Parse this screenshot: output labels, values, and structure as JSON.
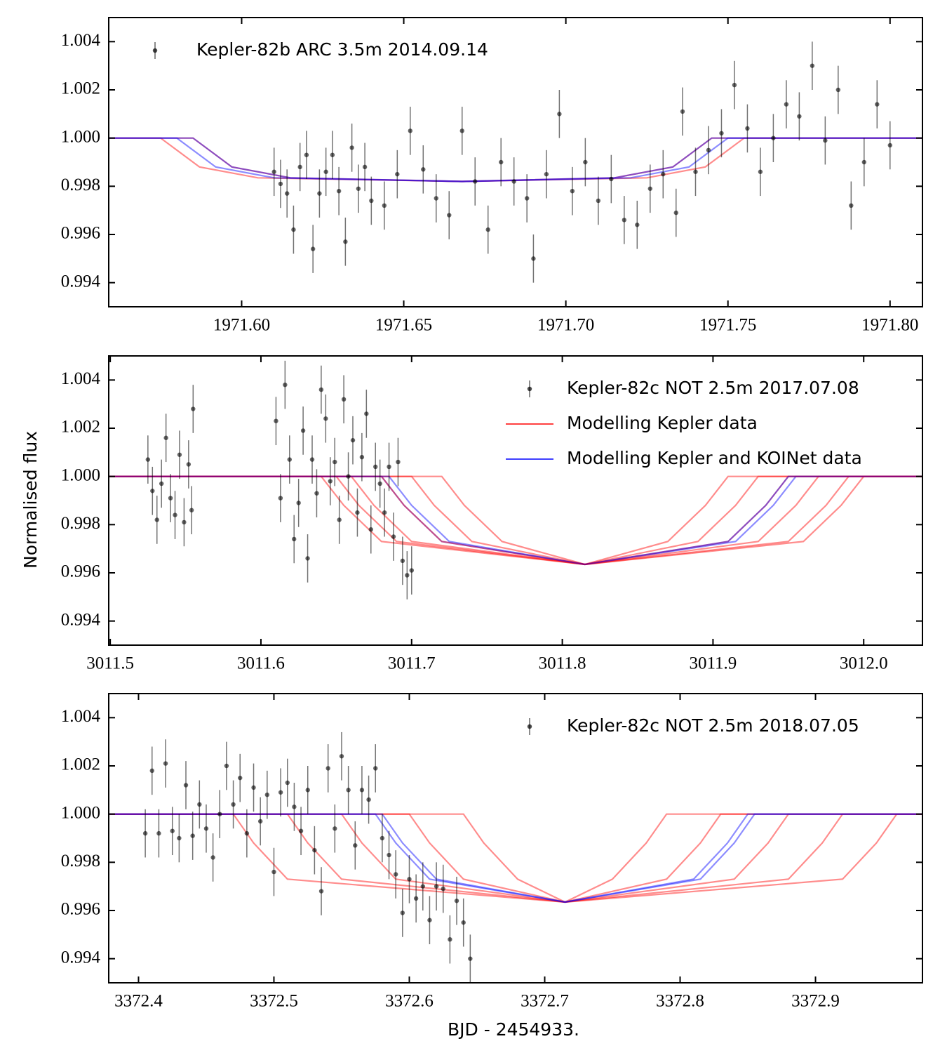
{
  "ylabel": "Normalised flux",
  "xlabel": "BJD - 2454933.",
  "chart_data": [
    {
      "type": "scatter",
      "legend": "upper left",
      "xlim": [
        1971.559,
        1971.81
      ],
      "ylim": [
        0.993,
        1.005
      ],
      "xticks": [
        {
          "value": 1971.6,
          "label": "1971.60"
        },
        1971.65,
        {
          "value": 1971.7,
          "label": "1971.70"
        },
        1971.75,
        {
          "value": 1971.8,
          "label": "1971.80"
        }
      ],
      "yticks": [
        0.994,
        0.996,
        0.998,
        {
          "value": 1,
          "label": "1.000"
        },
        1.002,
        1.004
      ],
      "series": [
        {
          "name": "Kepler-82b ARC 3.5m 2014.09.14",
          "color": "#000000",
          "yerr": 0.001,
          "x": [
            1971.61,
            1971.612,
            1971.614,
            1971.616,
            1971.618,
            1971.62,
            1971.622,
            1971.624,
            1971.626,
            1971.628,
            1971.63,
            1971.632,
            1971.634,
            1971.636,
            1971.638,
            1971.64,
            1971.644,
            1971.648,
            1971.652,
            1971.656,
            1971.66,
            1971.664,
            1971.668,
            1971.672,
            1971.676,
            1971.68,
            1971.684,
            1971.688,
            1971.69,
            1971.694,
            1971.698,
            1971.702,
            1971.706,
            1971.71,
            1971.714,
            1971.718,
            1971.722,
            1971.726,
            1971.73,
            1971.734,
            1971.736,
            1971.74,
            1971.744,
            1971.748,
            1971.752,
            1971.756,
            1971.76,
            1971.764,
            1971.768,
            1971.772,
            1971.776,
            1971.78,
            1971.784,
            1971.788,
            1971.792,
            1971.796,
            1971.8
          ],
          "values": [
            0.9986,
            0.9981,
            0.9977,
            0.9962,
            0.9988,
            0.9993,
            0.9954,
            0.9977,
            0.9986,
            0.9993,
            0.9978,
            0.9957,
            0.9996,
            0.9979,
            0.9988,
            0.9974,
            0.9972,
            0.9985,
            1.0003,
            0.9987,
            0.9975,
            0.9968,
            1.0003,
            0.9982,
            0.9962,
            0.999,
            0.9982,
            0.9975,
            0.995,
            0.9985,
            1.001,
            0.9978,
            0.999,
            0.9974,
            0.9983,
            0.9966,
            0.9964,
            0.9979,
            0.9985,
            0.9969,
            1.0011,
            0.9986,
            0.9995,
            1.0002,
            1.0022,
            1.0004,
            0.9986,
            1.0,
            1.0014,
            1.0009,
            1.003,
            0.9999,
            1.002,
            0.9972,
            0.999,
            1.0014,
            0.9997
          ]
        },
        {
          "color": "#ff0000",
          "x": [
            1971.559,
            1971.575,
            1971.587,
            1971.605,
            1971.668,
            1971.715,
            1971.733,
            1971.745,
            1971.81
          ],
          "values": [
            1,
            1,
            0.9988,
            0.99835,
            0.9982,
            0.99835,
            0.9988,
            1,
            1
          ]
        },
        {
          "color": "#ff0000",
          "x": [
            1971.559,
            1971.585,
            1971.597,
            1971.615,
            1971.668,
            1971.725,
            1971.743,
            1971.755,
            1971.81
          ],
          "values": [
            1,
            1,
            0.9988,
            0.99835,
            0.9982,
            0.99835,
            0.9988,
            1,
            1
          ]
        },
        {
          "color": "#0000ff",
          "x": [
            1971.559,
            1971.58,
            1971.592,
            1971.61,
            1971.668,
            1971.72,
            1971.738,
            1971.75,
            1971.81
          ],
          "values": [
            1,
            1,
            0.9988,
            0.99835,
            0.9982,
            0.99835,
            0.9988,
            1,
            1
          ]
        },
        {
          "color": "#0000ff",
          "x": [
            1971.559,
            1971.585,
            1971.597,
            1971.615,
            1971.668,
            1971.715,
            1971.733,
            1971.745,
            1971.81
          ],
          "values": [
            1,
            1,
            0.9988,
            0.99835,
            0.9982,
            0.99835,
            0.9988,
            1,
            1
          ]
        }
      ]
    },
    {
      "type": "scatter",
      "legend": "upper right",
      "xlim": [
        3011.499,
        3012.039
      ],
      "ylim": [
        0.993,
        1.005
      ],
      "xticks": [
        3011.5,
        3011.6,
        3011.7,
        3011.8,
        3011.9,
        {
          "value": 3012,
          "label": "3012.0"
        }
      ],
      "yticks": [
        0.994,
        0.996,
        0.998,
        {
          "value": 1,
          "label": "1.000"
        },
        1.002,
        1.004
      ],
      "series": [
        {
          "name": "Kepler-82c NOT 2.5m 2017.07.08",
          "color": "#000000",
          "yerr": 0.001,
          "x": [
            3011.525,
            3011.528,
            3011.531,
            3011.534,
            3011.537,
            3011.54,
            3011.543,
            3011.546,
            3011.549,
            3011.552,
            3011.555,
            3011.554,
            3011.61,
            3011.613,
            3011.616,
            3011.619,
            3011.622,
            3011.625,
            3011.628,
            3011.631,
            3011.634,
            3011.637,
            3011.64,
            3011.643,
            3011.646,
            3011.649,
            3011.652,
            3011.655,
            3011.658,
            3011.661,
            3011.664,
            3011.667,
            3011.67,
            3011.673,
            3011.676,
            3011.679,
            3011.682,
            3011.685,
            3011.688,
            3011.691,
            3011.694,
            3011.697,
            3011.7
          ],
          "values": [
            1.0007,
            0.9994,
            0.9982,
            0.9997,
            1.0016,
            0.9991,
            0.9984,
            1.0009,
            0.9981,
            1.0005,
            1.0028,
            0.9986,
            1.0023,
            0.9991,
            1.0038,
            1.0007,
            0.9974,
            0.9989,
            1.0019,
            0.9966,
            1.0007,
            0.9993,
            1.0036,
            1.0024,
            0.9998,
            1.0006,
            0.9982,
            1.0032,
            1.0,
            1.0015,
            0.9985,
            1.0008,
            1.0026,
            0.9978,
            1.0004,
            0.9997,
            0.9985,
            1.0004,
            0.9975,
            1.0006,
            0.9965,
            0.9959,
            0.9961
          ]
        },
        {
          "name": "Modelling Kepler data",
          "color": "#ff0000",
          "x": [
            3011.499,
            3011.64,
            3011.655,
            3011.68,
            3011.815,
            3011.95,
            3011.975,
            3011.99,
            3012.039
          ],
          "values": [
            1,
            1,
            0.9988,
            0.9973,
            0.99635,
            0.9973,
            0.9988,
            1,
            1
          ]
        },
        {
          "name": "Modelling Kepler and KOINet data",
          "color": "#0000ff",
          "x": [
            3011.499,
            3011.68,
            3011.695,
            3011.72,
            3011.815,
            3011.915,
            3011.94,
            3011.955,
            3012.039
          ],
          "values": [
            1,
            1,
            0.9988,
            0.9973,
            0.99635,
            0.9973,
            0.9988,
            1,
            1
          ]
        },
        {
          "color": "#ff0000",
          "x": [
            3011.499,
            3011.66,
            3011.675,
            3011.7,
            3011.815,
            3011.93,
            3011.955,
            3011.97,
            3012.039
          ],
          "values": [
            1,
            1,
            0.9988,
            0.9973,
            0.99635,
            0.9973,
            0.9988,
            1,
            1
          ]
        },
        {
          "color": "#ff0000",
          "x": [
            3011.499,
            3011.68,
            3011.695,
            3011.72,
            3011.815,
            3011.91,
            3011.935,
            3011.95,
            3012.039
          ],
          "values": [
            1,
            1,
            0.9988,
            0.9973,
            0.99635,
            0.9973,
            0.9988,
            1,
            1
          ]
        },
        {
          "color": "#ff0000",
          "x": [
            3011.499,
            3011.7,
            3011.715,
            3011.74,
            3011.815,
            3011.89,
            3011.915,
            3011.93,
            3012.039
          ],
          "values": [
            1,
            1,
            0.9988,
            0.9973,
            0.99635,
            0.9973,
            0.9988,
            1,
            1
          ]
        },
        {
          "color": "#ff0000",
          "x": [
            3011.499,
            3011.65,
            3011.665,
            3011.69,
            3011.815,
            3011.96,
            3011.985,
            3012.0,
            3012.039
          ],
          "values": [
            1,
            1,
            0.9988,
            0.9973,
            0.99635,
            0.9973,
            0.9988,
            1,
            1
          ]
        },
        {
          "color": "#ff0000",
          "x": [
            3011.499,
            3011.72,
            3011.735,
            3011.76,
            3011.815,
            3011.87,
            3011.895,
            3011.91,
            3012.039
          ],
          "values": [
            1,
            1,
            0.9988,
            0.9973,
            0.99635,
            0.9973,
            0.9988,
            1,
            1
          ]
        },
        {
          "color": "#0000ff",
          "x": [
            3011.499,
            3011.685,
            3011.7,
            3011.725,
            3011.815,
            3011.91,
            3011.935,
            3011.95,
            3012.039
          ],
          "values": [
            1,
            1,
            0.9988,
            0.9973,
            0.99635,
            0.9973,
            0.9988,
            1,
            1
          ]
        }
      ]
    },
    {
      "type": "scatter",
      "legend": "upper right",
      "xlim": [
        3372.378,
        3372.979
      ],
      "ylim": [
        0.993,
        1.005
      ],
      "xticks": [
        3372.4,
        3372.5,
        3372.6,
        3372.7,
        3372.8,
        3372.9
      ],
      "yticks": [
        0.994,
        0.996,
        0.998,
        {
          "value": 1,
          "label": "1.000"
        },
        1.002,
        1.004
      ],
      "series": [
        {
          "name": "Kepler-82c NOT 2.5m 2018.07.05",
          "color": "#000000",
          "yerr": 0.001,
          "x": [
            3372.405,
            3372.41,
            3372.415,
            3372.42,
            3372.425,
            3372.43,
            3372.435,
            3372.44,
            3372.445,
            3372.45,
            3372.455,
            3372.46,
            3372.465,
            3372.47,
            3372.475,
            3372.48,
            3372.485,
            3372.49,
            3372.495,
            3372.5,
            3372.505,
            3372.51,
            3372.515,
            3372.52,
            3372.525,
            3372.53,
            3372.535,
            3372.54,
            3372.545,
            3372.55,
            3372.555,
            3372.56,
            3372.565,
            3372.57,
            3372.575,
            3372.58,
            3372.585,
            3372.59,
            3372.595,
            3372.6,
            3372.605,
            3372.61,
            3372.615,
            3372.62,
            3372.625,
            3372.63,
            3372.635,
            3372.64,
            3372.645
          ],
          "values": [
            0.9992,
            1.0018,
            0.9992,
            1.0021,
            0.9993,
            0.999,
            1.0012,
            0.9991,
            1.0004,
            0.9994,
            0.9982,
            1.0,
            1.002,
            1.0004,
            1.0015,
            0.9992,
            1.0011,
            0.9997,
            1.0008,
            0.9976,
            1.0009,
            1.0013,
            1.0003,
            0.9993,
            1.001,
            0.9985,
            0.9968,
            1.0019,
            0.9994,
            1.0024,
            1.001,
            0.9987,
            1.001,
            1.0006,
            1.0019,
            0.999,
            0.9983,
            0.9975,
            0.9959,
            0.9973,
            0.9965,
            0.997,
            0.9956,
            0.997,
            0.9969,
            0.9948,
            0.9964,
            0.9955,
            0.994
          ]
        },
        {
          "color": "#ff0000",
          "x": [
            3372.378,
            3372.47,
            3372.485,
            3372.51,
            3372.715,
            3372.92,
            3372.945,
            3372.96,
            3372.979
          ],
          "values": [
            1,
            1,
            0.9988,
            0.9973,
            0.99635,
            0.9973,
            0.9988,
            1,
            1
          ]
        },
        {
          "color": "#ff0000",
          "x": [
            3372.378,
            3372.51,
            3372.525,
            3372.55,
            3372.715,
            3372.88,
            3372.905,
            3372.92,
            3372.979
          ],
          "values": [
            1,
            1,
            0.9988,
            0.9973,
            0.99635,
            0.9973,
            0.9988,
            1,
            1
          ]
        },
        {
          "color": "#ff0000",
          "x": [
            3372.378,
            3372.55,
            3372.565,
            3372.59,
            3372.715,
            3372.84,
            3372.865,
            3372.88,
            3372.979
          ],
          "values": [
            1,
            1,
            0.9988,
            0.9973,
            0.99635,
            0.9973,
            0.9988,
            1,
            1
          ]
        },
        {
          "color": "#ff0000",
          "x": [
            3372.378,
            3372.6,
            3372.615,
            3372.64,
            3372.715,
            3372.79,
            3372.815,
            3372.83,
            3372.979
          ],
          "values": [
            1,
            1,
            0.9988,
            0.9973,
            0.99635,
            0.9973,
            0.9988,
            1,
            1
          ]
        },
        {
          "color": "#ff0000",
          "x": [
            3372.378,
            3372.64,
            3372.655,
            3372.68,
            3372.715,
            3372.75,
            3372.775,
            3372.79,
            3372.979
          ],
          "values": [
            1,
            1,
            0.9988,
            0.9973,
            0.99635,
            0.9973,
            0.9988,
            1,
            1
          ]
        },
        {
          "color": "#0000ff",
          "x": [
            3372.378,
            3372.575,
            3372.59,
            3372.615,
            3372.715,
            3372.815,
            3372.84,
            3372.855,
            3372.979
          ],
          "values": [
            1,
            1,
            0.9988,
            0.9973,
            0.99635,
            0.9973,
            0.9988,
            1,
            1
          ]
        },
        {
          "color": "#0000ff",
          "x": [
            3372.378,
            3372.58,
            3372.595,
            3372.62,
            3372.715,
            3372.81,
            3372.835,
            3372.85,
            3372.979
          ],
          "values": [
            1,
            1,
            0.9988,
            0.9973,
            0.99635,
            0.9973,
            0.9988,
            1,
            1
          ]
        }
      ]
    }
  ]
}
